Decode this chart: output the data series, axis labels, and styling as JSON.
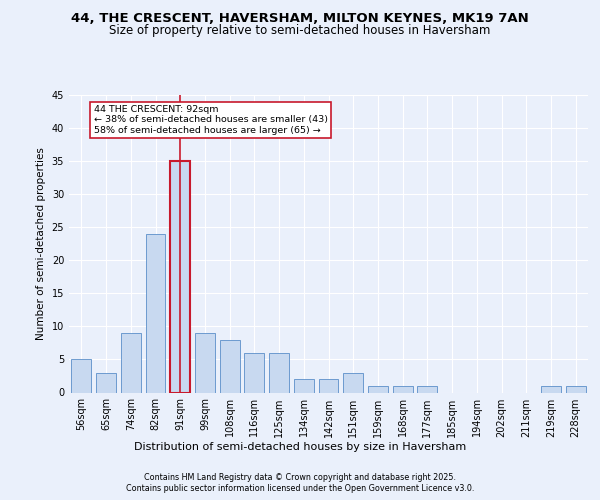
{
  "title1": "44, THE CRESCENT, HAVERSHAM, MILTON KEYNES, MK19 7AN",
  "title2": "Size of property relative to semi-detached houses in Haversham",
  "xlabel": "Distribution of semi-detached houses by size in Haversham",
  "ylabel": "Number of semi-detached properties",
  "categories": [
    "56sqm",
    "65sqm",
    "74sqm",
    "82sqm",
    "91sqm",
    "99sqm",
    "108sqm",
    "116sqm",
    "125sqm",
    "134sqm",
    "142sqm",
    "151sqm",
    "159sqm",
    "168sqm",
    "177sqm",
    "185sqm",
    "194sqm",
    "202sqm",
    "211sqm",
    "219sqm",
    "228sqm"
  ],
  "values": [
    5,
    3,
    9,
    24,
    35,
    9,
    8,
    6,
    6,
    2,
    2,
    3,
    1,
    1,
    1,
    0,
    0,
    0,
    0,
    1,
    1
  ],
  "bar_color": "#c8d9f0",
  "bar_edge_color": "#5b8fc9",
  "highlight_bar_index": 4,
  "highlight_edge_color": "#c8192c",
  "vline_color": "#c8192c",
  "annotation_text": "44 THE CRESCENT: 92sqm\n← 38% of semi-detached houses are smaller (43)\n58% of semi-detached houses are larger (65) →",
  "annotation_box_color": "white",
  "annotation_box_edge": "#c8192c",
  "ylim": [
    0,
    45
  ],
  "yticks": [
    0,
    5,
    10,
    15,
    20,
    25,
    30,
    35,
    40,
    45
  ],
  "bg_color": "#eaf0fb",
  "plot_bg_color": "#eaf0fb",
  "footer1": "Contains HM Land Registry data © Crown copyright and database right 2025.",
  "footer2": "Contains public sector information licensed under the Open Government Licence v3.0.",
  "title_fontsize": 9.5,
  "subtitle_fontsize": 8.5,
  "axis_fontsize": 7,
  "ylabel_fontsize": 7.5,
  "xlabel_fontsize": 8,
  "footer_fontsize": 5.8,
  "annotation_fontsize": 6.8
}
